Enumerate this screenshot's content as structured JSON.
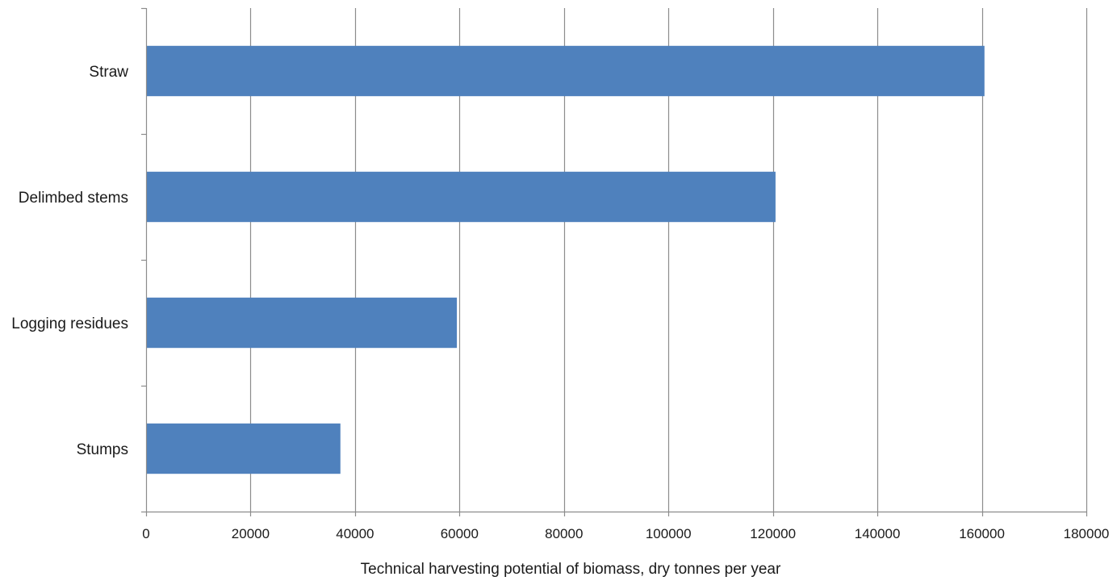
{
  "chart_data": {
    "type": "bar",
    "orientation": "horizontal",
    "categories": [
      "Straw",
      "Delimbed stems",
      "Logging residues",
      "Stumps"
    ],
    "values": [
      160500,
      120500,
      59500,
      37200
    ],
    "title": "",
    "xlabel": "Technical harvesting potential of biomass, dry tonnes per year",
    "ylabel": "",
    "xlim": [
      0,
      180000
    ],
    "xticks": [
      0,
      20000,
      40000,
      60000,
      80000,
      100000,
      120000,
      140000,
      160000,
      180000
    ],
    "tick_labels": [
      "0",
      "20000",
      "40000",
      "60000",
      "80000",
      "100000",
      "120000",
      "140000",
      "160000",
      "180000"
    ],
    "grid": "vertical",
    "legend": "none",
    "bar_color": "#4f81bd",
    "grid_color": "#8c8c8c"
  }
}
